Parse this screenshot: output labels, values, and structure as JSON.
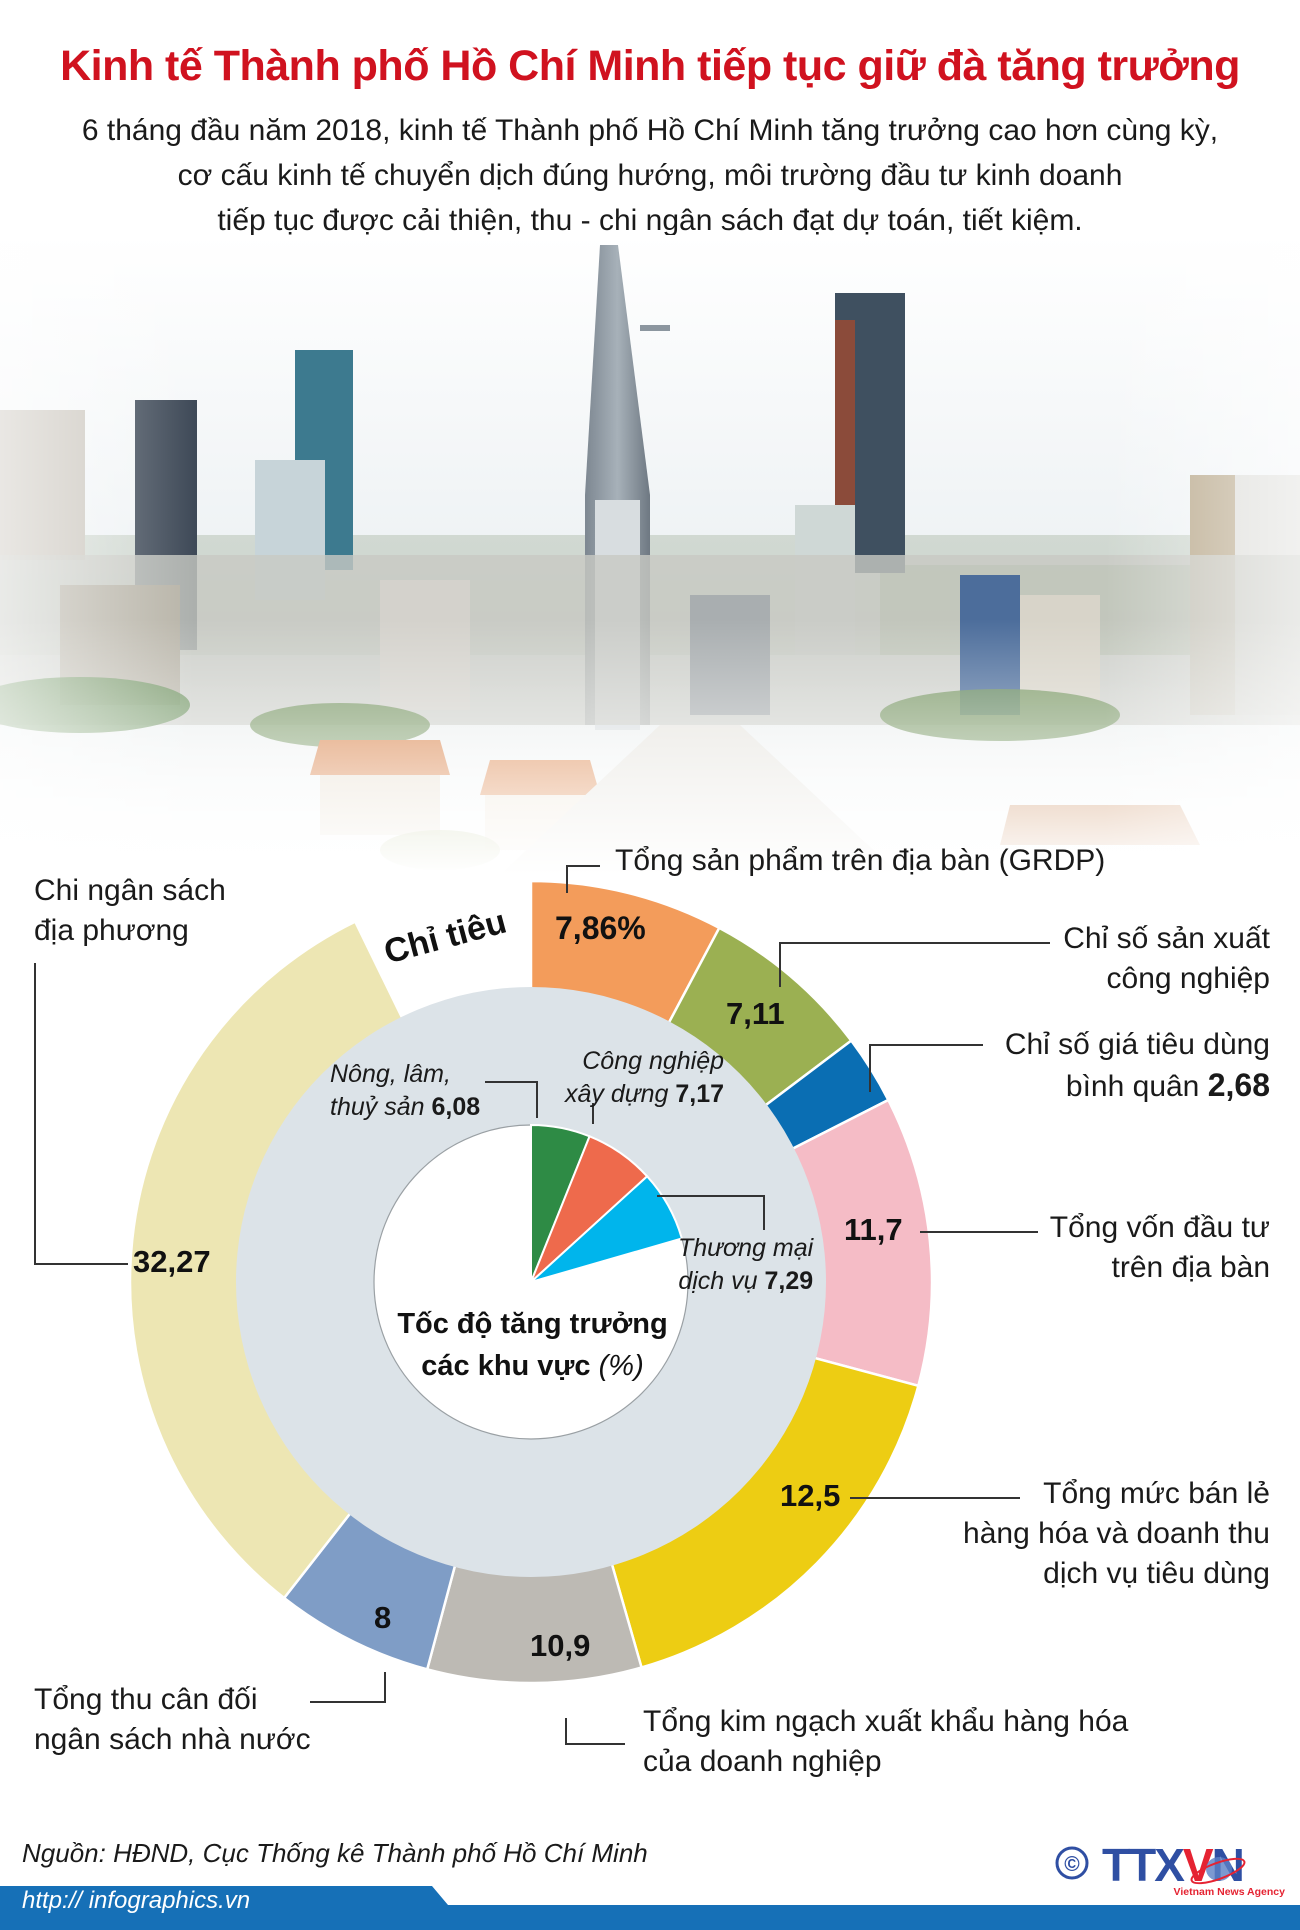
{
  "header": {
    "title": "Kinh tế Thành phố Hồ Chí Minh tiếp tục giữ đà tăng trưởng",
    "subtitle_lines": [
      "6 tháng đầu năm 2018, kinh tế Thành phố Hồ Chí Minh tăng trưởng cao hơn cùng kỳ,",
      "cơ cấu kinh tế chuyển dịch đúng hướng, môi trường đầu tư kinh doanh",
      "tiếp tục được cải thiện, thu - chi ngân sách đạt dự toán, tiết kiệm."
    ]
  },
  "photo": {
    "description": "Ho Chi Minh City skyline aerial photo"
  },
  "colors": {
    "title": "#d0121f",
    "gray_ring": "#dce3e8",
    "footer": "#1670b7"
  },
  "chart_data": [
    {
      "type": "pie",
      "variant": "donut-outer",
      "title": "Chỉ tiêu",
      "unit": "%",
      "categories": [
        "Tổng sản phẩm trên địa bàn (GRDP)",
        "Chỉ số sản xuất công nghiệp",
        "Chỉ số giá tiêu dùng bình quân",
        "Tổng vốn đầu tư trên địa bàn",
        "Tổng mức bán lẻ hàng hóa và doanh thu dịch vụ tiêu dùng",
        "Tổng kim ngạch xuất khẩu hàng hóa của doanh nghiệp",
        "Tổng thu cân đối ngân sách nhà nước",
        "Chi ngân sách địa phương"
      ],
      "values": [
        7.86,
        7.11,
        2.68,
        11.7,
        12.5,
        10.9,
        8,
        32.27
      ],
      "value_labels": [
        "7,86%",
        "7,11",
        "2,68",
        "11,7",
        "12,5",
        "10,9",
        "8",
        "32,27"
      ],
      "colors": [
        "#f39c5b",
        "#9bb052",
        "#0a6eb3",
        "#f5bcc6",
        "#edcd13",
        "#bdbab4",
        "#7f9dc6",
        "#ede6b3"
      ],
      "angle_bounds_deg": [
        0,
        28,
        53,
        63,
        105,
        164,
        195,
        218,
        334
      ]
    },
    {
      "type": "pie",
      "variant": "inner-partial",
      "title": "Tốc độ tăng trưởng các khu vực (%)",
      "categories": [
        "Nông, lâm, thuỷ sản",
        "Công nghiệp xây dựng",
        "Thương mại dịch vụ"
      ],
      "values": [
        6.08,
        7.17,
        7.29
      ],
      "value_labels": [
        "6,08",
        "7,17",
        "7,29"
      ],
      "colors": [
        "#2e8b45",
        "#ee6a4c",
        "#00b5ec"
      ],
      "angle_bounds_deg": [
        0,
        21.9,
        47.7,
        73.9
      ]
    }
  ],
  "labels": {
    "chitieu": "Chỉ tiêu",
    "grdp": "Tổng sản phẩm trên địa bàn (GRDP)",
    "grdp_value": "7,86%",
    "ip_line1": "Chỉ số sản xuất",
    "ip_line2": "công nghiệp",
    "ip_value": "7,11",
    "cpi_line1": "Chỉ số giá tiêu dùng",
    "cpi_line2": "bình quân",
    "cpi_value": "2,68",
    "invest_line1": "Tổng vốn đầu tư",
    "invest_line2": "trên địa bàn",
    "invest_value": "11,7",
    "retail_line1": "Tổng mức bán lẻ",
    "retail_line2": "hàng hóa và doanh thu",
    "retail_line3": "dịch vụ tiêu dùng",
    "retail_value": "12,5",
    "export_line1": "Tổng kim ngạch xuất khẩu hàng hóa",
    "export_line2": "của doanh nghiệp",
    "export_value": "10,9",
    "revenue_line1": "Tổng thu cân đối",
    "revenue_line2": "ngân sách nhà nước",
    "revenue_value": "8",
    "spend_line1": "Chi ngân sách",
    "spend_line2": "địa phương",
    "spend_value": "32,27",
    "agri_line1": "Nông, lâm,",
    "agri_line2": "thuỷ sản",
    "agri_value": "6,08",
    "constr_line1": "Công nghiệp",
    "constr_line2": "xây dựng",
    "constr_value": "7,17",
    "trade_line1": "Thương mại",
    "trade_line2": "dịch vụ",
    "trade_value": "7,29",
    "center_line1": "Tốc độ tăng trưởng",
    "center_line2": "các khu vực",
    "center_unit": "(%)"
  },
  "footer": {
    "source": "Nguồn: HĐND, Cục Thống kê Thành phố Hồ Chí Minh",
    "url": "http:// infographics.vn",
    "logo_text": "TTXVN",
    "logo_sub": "Vietnam News Agency",
    "copyright": "©"
  }
}
